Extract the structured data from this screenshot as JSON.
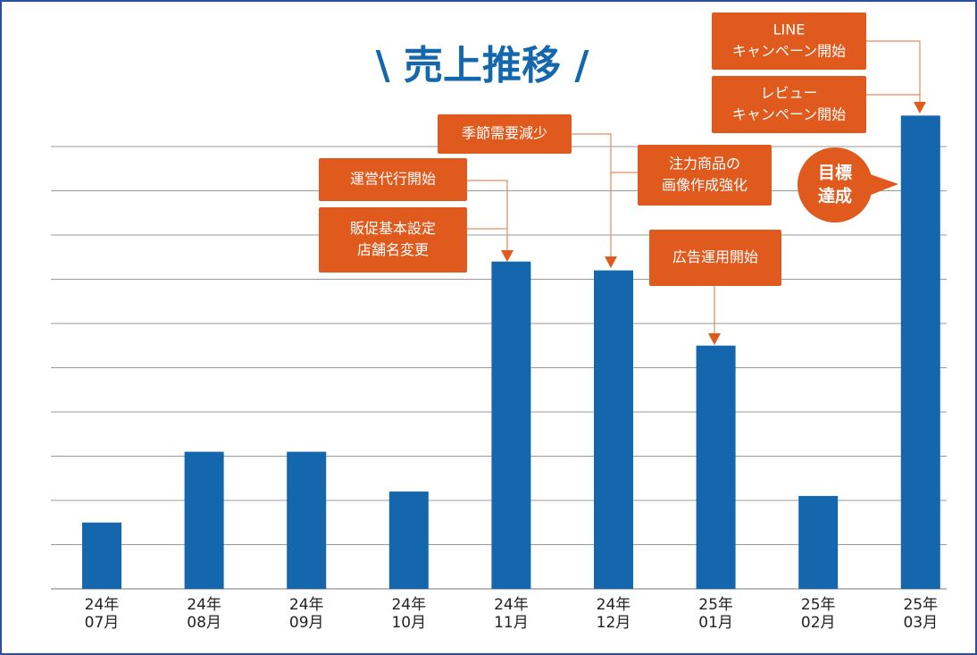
{
  "chart_data": {
    "type": "bar",
    "title": "\\ 売上推移 /",
    "categories": [
      [
        "24年",
        "07月"
      ],
      [
        "24年",
        "08月"
      ],
      [
        "24年",
        "09月"
      ],
      [
        "24年",
        "10月"
      ],
      [
        "24年",
        "11月"
      ],
      [
        "24年",
        "12月"
      ],
      [
        "25年",
        "01月"
      ],
      [
        "25年",
        "02月"
      ],
      [
        "25年",
        "03月"
      ]
    ],
    "values": [
      1.5,
      3.1,
      3.1,
      2.2,
      7.4,
      7.2,
      5.5,
      2.1,
      10.7
    ],
    "color": "#1467ad",
    "ylim": [
      0,
      11
    ],
    "yticks": [
      0,
      1,
      2,
      3,
      4,
      5,
      6,
      7,
      8,
      9,
      10
    ],
    "grid": true,
    "annotations": [
      {
        "lines": [
          "LINE",
          "キャンペーン開始"
        ]
      },
      {
        "lines": [
          "レビュー",
          "キャンペーン開始"
        ]
      },
      {
        "lines": [
          "季節需要減少"
        ]
      },
      {
        "lines": [
          "注力商品の",
          "画像作成強化"
        ]
      },
      {
        "lines": [
          "運営代行開始"
        ]
      },
      {
        "lines": [
          "販促基本設定",
          "店舗名変更"
        ]
      },
      {
        "lines": [
          "広告運用開始"
        ]
      }
    ],
    "badge": {
      "lines": [
        "目標",
        "達成"
      ]
    }
  }
}
